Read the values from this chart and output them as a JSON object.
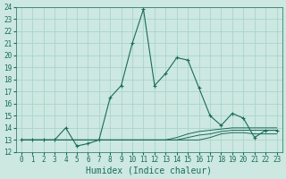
{
  "xlabel": "Humidex (Indice chaleur)",
  "bg_color": "#cce8e0",
  "grid_color": "#aad4cc",
  "line_color": "#1a6b5a",
  "x": [
    0,
    1,
    2,
    3,
    4,
    5,
    6,
    7,
    8,
    9,
    10,
    11,
    12,
    13,
    14,
    15,
    16,
    17,
    18,
    19,
    20,
    21,
    22,
    23
  ],
  "y_main": [
    13.0,
    13.0,
    13.0,
    13.0,
    14.0,
    12.5,
    12.7,
    13.0,
    16.5,
    17.5,
    21.0,
    23.8,
    17.5,
    18.5,
    19.8,
    19.6,
    17.3,
    15.0,
    14.2,
    15.2,
    14.8,
    13.2,
    13.8,
    13.8
  ],
  "y_line2": [
    13.0,
    13.0,
    13.0,
    13.0,
    13.0,
    13.0,
    13.0,
    13.0,
    13.0,
    13.0,
    13.0,
    13.0,
    13.0,
    13.0,
    13.2,
    13.5,
    13.7,
    13.8,
    13.9,
    14.0,
    14.0,
    14.0,
    14.0,
    14.0
  ],
  "y_line3": [
    13.0,
    13.0,
    13.0,
    13.0,
    13.0,
    13.0,
    13.0,
    13.0,
    13.0,
    13.0,
    13.0,
    13.0,
    13.0,
    13.0,
    13.0,
    13.2,
    13.4,
    13.5,
    13.7,
    13.8,
    13.8,
    13.8,
    13.8,
    13.8
  ],
  "y_line4": [
    13.0,
    13.0,
    13.0,
    13.0,
    13.0,
    13.0,
    13.0,
    13.0,
    13.0,
    13.0,
    13.0,
    13.0,
    13.0,
    13.0,
    13.0,
    13.0,
    13.0,
    13.2,
    13.5,
    13.6,
    13.6,
    13.5,
    13.5,
    13.5
  ],
  "ylim": [
    12,
    24
  ],
  "xlim": [
    -0.5,
    23.5
  ],
  "yticks": [
    12,
    13,
    14,
    15,
    16,
    17,
    18,
    19,
    20,
    21,
    22,
    23,
    24
  ],
  "xticks": [
    0,
    1,
    2,
    3,
    4,
    5,
    6,
    7,
    8,
    9,
    10,
    11,
    12,
    13,
    14,
    15,
    16,
    17,
    18,
    19,
    20,
    21,
    22,
    23
  ],
  "tick_fontsize": 5.5,
  "label_fontsize": 7.0
}
